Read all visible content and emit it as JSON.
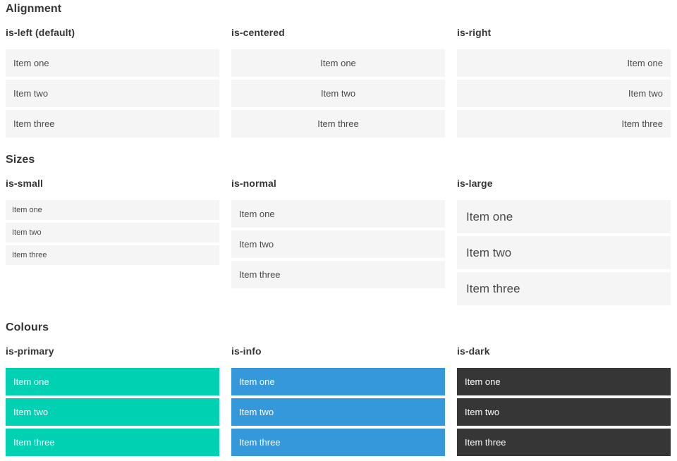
{
  "sections": [
    {
      "title": "Alignment",
      "columns": [
        {
          "heading": "is-left (default)",
          "variant": "left",
          "items": [
            "Item one",
            "Item two",
            "Item three"
          ]
        },
        {
          "heading": "is-centered",
          "variant": "centered",
          "items": [
            "Item one",
            "Item two",
            "Item three"
          ]
        },
        {
          "heading": "is-right",
          "variant": "right",
          "items": [
            "Item one",
            "Item two",
            "Item three"
          ]
        }
      ]
    },
    {
      "title": "Sizes",
      "columns": [
        {
          "heading": "is-small",
          "variant": "small",
          "items": [
            "Item one",
            "Item two",
            "Item three"
          ]
        },
        {
          "heading": "is-normal",
          "variant": "normal",
          "items": [
            "Item one",
            "Item two",
            "Item three"
          ]
        },
        {
          "heading": "is-large",
          "variant": "large",
          "items": [
            "Item one",
            "Item two",
            "Item three"
          ]
        }
      ]
    },
    {
      "title": "Colours",
      "columns": [
        {
          "heading": "is-primary",
          "variant": "primary",
          "items": [
            "Item one",
            "Item two",
            "Item three"
          ]
        },
        {
          "heading": "is-info",
          "variant": "info",
          "items": [
            "Item one",
            "Item two",
            "Item three"
          ]
        },
        {
          "heading": "is-dark",
          "variant": "dark",
          "items": [
            "Item one",
            "Item two",
            "Item three"
          ]
        }
      ]
    }
  ],
  "colors": {
    "primary": "#00d1b2",
    "info": "#3498db",
    "dark": "#363636",
    "item_background": "#f5f5f5",
    "item_text": "#4a4a4a",
    "heading_text": "#363636"
  }
}
